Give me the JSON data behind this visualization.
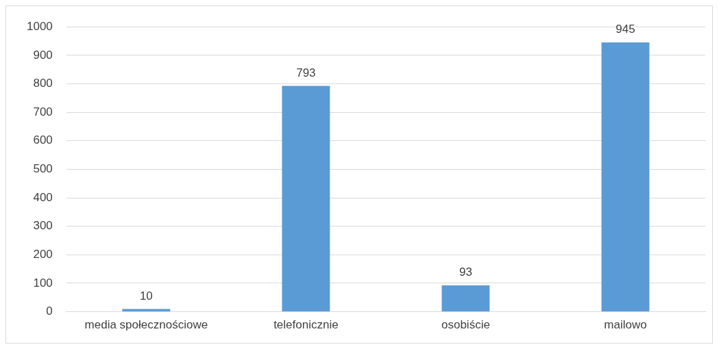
{
  "chart_data": {
    "type": "bar",
    "categories": [
      "media społecznościowe",
      "telefonicznie",
      "osobiście",
      "mailowo"
    ],
    "values": [
      10,
      793,
      93,
      945
    ],
    "color": "#5b9bd5",
    "ylim": [
      0,
      1000
    ],
    "yticks": [
      0,
      100,
      200,
      300,
      400,
      500,
      600,
      700,
      800,
      900,
      1000
    ],
    "grid": "y",
    "data_labels": true,
    "legend": false
  }
}
